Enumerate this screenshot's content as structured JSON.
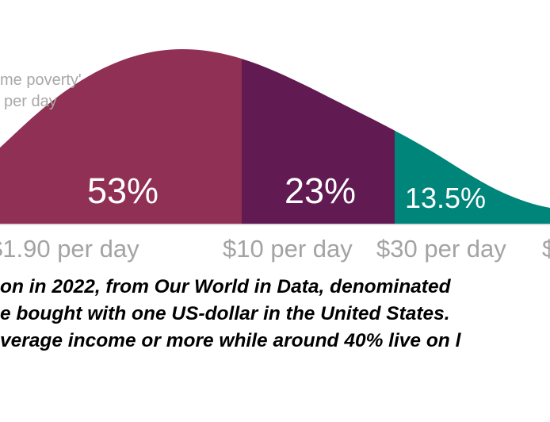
{
  "chart_data": {
    "type": "area",
    "title": "",
    "xlabel": "",
    "ylabel": "",
    "x_ticks": [
      "$1.90 per day",
      "$10 per day",
      "$30 per day",
      "$"
    ],
    "series": [
      {
        "name": "extreme poverty band",
        "label": "",
        "color": "#8f3054"
      },
      {
        "name": "$1.90 to $10 per day",
        "label": "53%",
        "color": "#8f3054"
      },
      {
        "name": "$10 to $30 per day",
        "label": "23%",
        "color": "#611a52"
      },
      {
        "name": "$30 per day and above",
        "label": "13.5%",
        "color": "#00857a"
      }
    ],
    "annotation_lines": [
      "me poverty'",
      "per day"
    ]
  },
  "caption": {
    "line1": "on in 2022, from Our World in Data, denominated",
    "line2": "e bought with one US-dollar in the United States.",
    "line3": "verage income or more while around 40% live on l"
  }
}
